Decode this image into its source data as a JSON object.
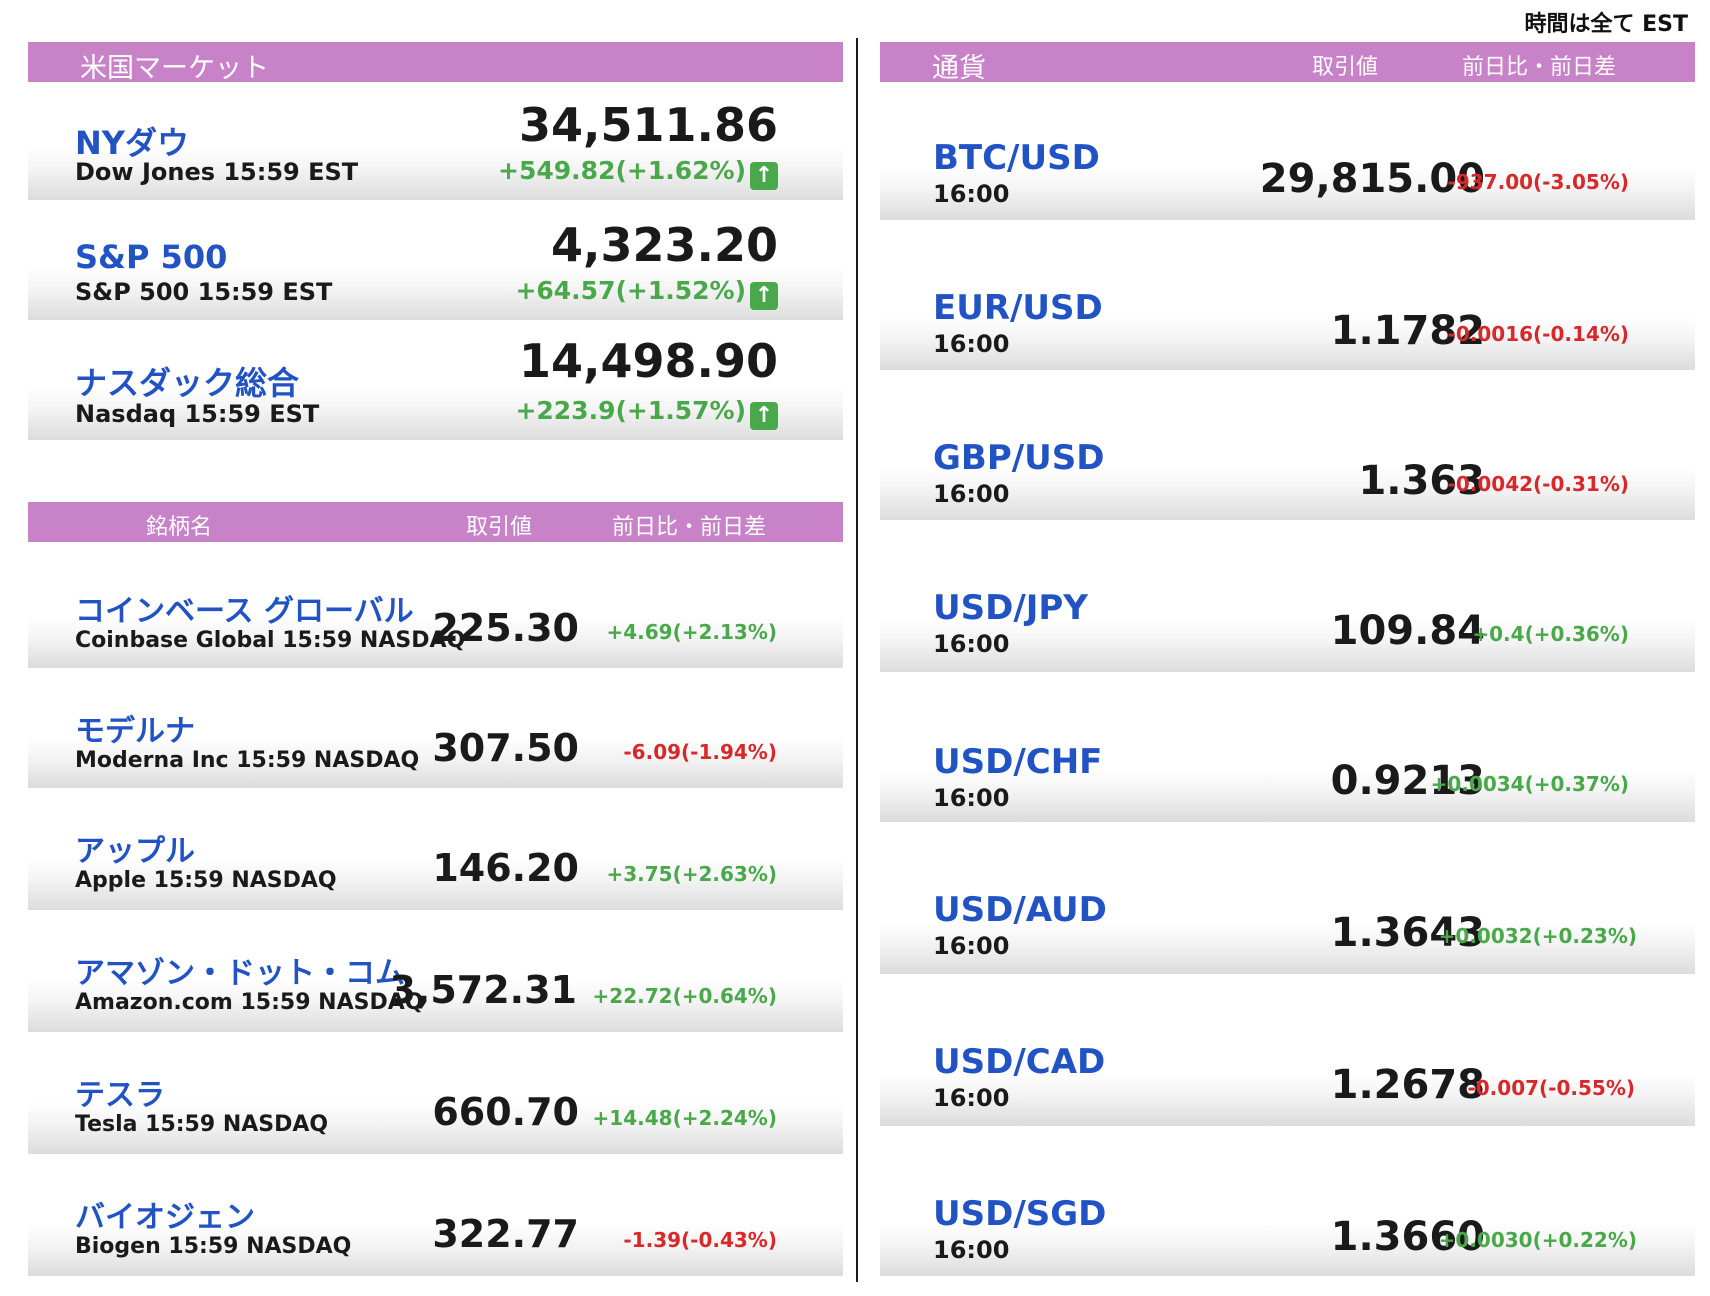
{
  "header": {
    "timezone_note": "時間は全て EST"
  },
  "indices": {
    "title": "米国マーケット",
    "items": [
      {
        "jp_name": "NYダウ",
        "en_name": "Dow Jones 15:59 EST",
        "value": "34,511.86",
        "change": "+549.82(+1.62%)"
      },
      {
        "jp_name": "S&P 500",
        "en_name": "S&P 500 15:59 EST",
        "value": "4,323.20",
        "change": "+64.57(+1.52%)"
      },
      {
        "jp_name": "ナスダック総合",
        "en_name": "Nasdaq 15:59 EST",
        "value": "14,498.90",
        "change": "+223.9(+1.57%)"
      }
    ],
    "up_icon": "up-arrow-icon"
  },
  "stocks": {
    "headers": {
      "name": "銘柄名",
      "price": "取引値",
      "change": "前日比・前日差"
    },
    "items": [
      {
        "jp_name": "コインベース グローバル",
        "en_name": "Coinbase Global 15:59  NASDAQ",
        "price": "225.30",
        "change": "+4.69(+2.13%)",
        "direction": "up"
      },
      {
        "jp_name": "モデルナ",
        "en_name": "Moderna Inc 15:59  NASDAQ",
        "price": "307.50",
        "change": "-6.09(-1.94%)",
        "direction": "down"
      },
      {
        "jp_name": "アップル",
        "en_name": "Apple 15:59  NASDAQ",
        "price": "146.20",
        "change": "+3.75(+2.63%)",
        "direction": "up"
      },
      {
        "jp_name": "アマゾン・ドット・コム",
        "en_name": "Amazon.com 15:59  NASDAQ",
        "price": "3,572.31",
        "change": "+22.72(+0.64%)",
        "direction": "up"
      },
      {
        "jp_name": "テスラ",
        "en_name": "Tesla 15:59  NASDAQ",
        "price": "660.70",
        "change": "+14.48(+2.24%)",
        "direction": "up"
      },
      {
        "jp_name": "バイオジェン",
        "en_name": "Biogen 15:59  NASDAQ",
        "price": "322.77",
        "change": "-1.39(-0.43%)",
        "direction": "down"
      }
    ]
  },
  "currencies": {
    "headers": {
      "name": "通貨",
      "price": "取引値",
      "change": "前日比・前日差"
    },
    "items": [
      {
        "pair": "BTC/USD",
        "time": "16:00",
        "price": "29,815.00",
        "change": "-937.00(-3.05%)",
        "direction": "down"
      },
      {
        "pair": "EUR/USD",
        "time": "16:00",
        "price": "1.1782",
        "change": "-0.0016(-0.14%)",
        "direction": "down"
      },
      {
        "pair": "GBP/USD",
        "time": "16:00",
        "price": "1.363",
        "change": "-0.0042(-0.31%)",
        "direction": "down"
      },
      {
        "pair": "USD/JPY",
        "time": "16:00",
        "price": "109.84",
        "change": "+0.4(+0.36%)",
        "direction": "up"
      },
      {
        "pair": "USD/CHF",
        "time": "16:00",
        "price": "0.9213",
        "change": "+0.0034(+0.37%)",
        "direction": "up"
      },
      {
        "pair": "USD/AUD",
        "time": "16:00",
        "price": "1.3643",
        "change": "+0.0032(+0.23%)",
        "direction": "up"
      },
      {
        "pair": "USD/CAD",
        "time": "16:00",
        "price": "1.2678",
        "change": "-0.007(-0.55%)",
        "direction": "down"
      },
      {
        "pair": "USD/SGD",
        "time": "16:00",
        "price": "1.3660",
        "change": "+0.0030(+0.22%)",
        "direction": "up"
      }
    ]
  },
  "colors": {
    "band": "#c882c8",
    "name_blue": "#2153c4",
    "up_green": "#48a84a",
    "down_red": "#d8282a"
  }
}
